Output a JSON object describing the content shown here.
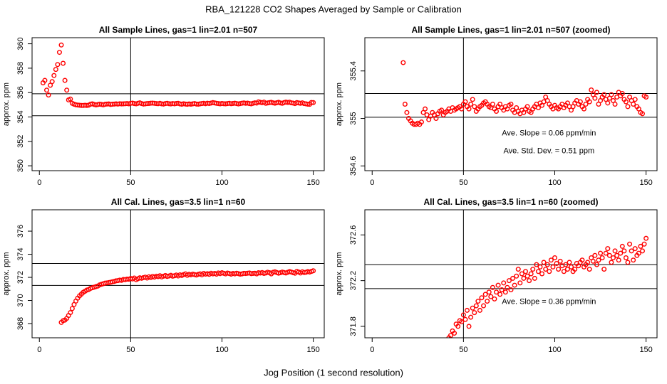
{
  "title": "RBA_121228  CO2 Shapes Averaged by Sample or Calibration",
  "xlabel": "Jog Position (1 second resolution)",
  "chart_data": [
    {
      "type": "scatter",
      "title": "All Sample Lines, gas=1 lin=2.01 n=507",
      "ylabel": "approx. ppm",
      "color": "#ff0000",
      "xlim": [
        -4,
        156
      ],
      "ylim": [
        349.6,
        360.5
      ],
      "xticks": [
        0,
        50,
        100,
        150
      ],
      "yticks": [
        350,
        352,
        354,
        356,
        358,
        360
      ],
      "hlines": [
        355.9,
        354.1
      ],
      "vline": 50,
      "annotations": [],
      "x": [
        2,
        3,
        4,
        5,
        6,
        7,
        8,
        9,
        10,
        11,
        12,
        13,
        14,
        15,
        16,
        17,
        18,
        19,
        20,
        21,
        22,
        23,
        24,
        25,
        26,
        27,
        28,
        29,
        30,
        31,
        32,
        33,
        34,
        35,
        36,
        37,
        38,
        39,
        40,
        41,
        42,
        43,
        44,
        45,
        46,
        47,
        48,
        49,
        50,
        51,
        52,
        53,
        54,
        55,
        56,
        57,
        58,
        59,
        60,
        61,
        62,
        63,
        64,
        65,
        66,
        67,
        68,
        69,
        70,
        71,
        72,
        73,
        74,
        75,
        76,
        77,
        78,
        79,
        80,
        81,
        82,
        83,
        84,
        85,
        86,
        87,
        88,
        89,
        90,
        91,
        92,
        93,
        94,
        95,
        96,
        97,
        98,
        99,
        100,
        101,
        102,
        103,
        104,
        105,
        106,
        107,
        108,
        109,
        110,
        111,
        112,
        113,
        114,
        115,
        116,
        117,
        118,
        119,
        120,
        121,
        122,
        123,
        124,
        125,
        126,
        127,
        128,
        129,
        130,
        131,
        132,
        133,
        134,
        135,
        136,
        137,
        138,
        139,
        140,
        141,
        142,
        143,
        144,
        145,
        146,
        147,
        148,
        149,
        150
      ],
      "values": [
        356.8,
        357.0,
        356.2,
        355.8,
        356.6,
        356.9,
        357.4,
        357.9,
        358.3,
        359.3,
        359.9,
        358.4,
        357.0,
        356.2,
        355.4,
        355.47,
        355.12,
        355.05,
        355.0,
        354.98,
        354.96,
        354.95,
        354.95,
        354.96,
        354.95,
        354.97,
        355.05,
        355.08,
        355.03,
        354.99,
        355.02,
        355.05,
        355.03,
        355.0,
        355.04,
        355.06,
        355.07,
        355.03,
        355.05,
        355.06,
        355.08,
        355.06,
        355.09,
        355.07,
        355.08,
        355.09,
        355.1,
        355.08,
        355.12,
        355.14,
        355.1,
        355.08,
        355.12,
        355.16,
        355.1,
        355.06,
        355.08,
        355.1,
        355.11,
        355.13,
        355.14,
        355.12,
        355.1,
        355.09,
        355.12,
        355.08,
        355.06,
        355.1,
        355.12,
        355.09,
        355.07,
        355.1,
        355.08,
        355.11,
        355.12,
        355.07,
        355.05,
        355.09,
        355.06,
        355.04,
        355.07,
        355.05,
        355.08,
        355.1,
        355.06,
        355.05,
        355.08,
        355.1,
        355.12,
        355.09,
        355.13,
        355.11,
        355.14,
        355.18,
        355.15,
        355.12,
        355.1,
        355.08,
        355.11,
        355.09,
        355.08,
        355.1,
        355.12,
        355.09,
        355.11,
        355.13,
        355.1,
        355.07,
        355.1,
        355.13,
        355.15,
        355.12,
        355.14,
        355.1,
        355.08,
        355.12,
        355.16,
        355.14,
        355.24,
        355.2,
        355.17,
        355.22,
        355.12,
        355.15,
        355.18,
        355.2,
        355.16,
        355.13,
        355.17,
        355.2,
        355.15,
        355.12,
        355.18,
        355.22,
        355.19,
        355.21,
        355.16,
        355.14,
        355.1,
        355.18,
        355.15,
        355.12,
        355.16,
        355.1,
        355.08,
        355.05,
        355.04,
        355.19,
        355.18
      ]
    },
    {
      "type": "scatter",
      "title": "All Sample Lines, gas=1 lin=2.01 n=507 (zoomed)",
      "ylabel": "approx. ppm",
      "color": "#ff0000",
      "xlim": [
        -4,
        156
      ],
      "ylim": [
        354.56,
        355.68
      ],
      "xticks": [
        0,
        50,
        100,
        150
      ],
      "yticks": [
        354.6,
        355.0,
        355.4
      ],
      "hlines": [
        355.21,
        355.01
      ],
      "vline": 50,
      "annotations": [
        "Ave. Slope =  0.06  ppm/min",
        "Ave. Std. Dev. =  0.51  ppm"
      ],
      "x": [
        17,
        18,
        19,
        20,
        21,
        22,
        23,
        24,
        25,
        26,
        27,
        28,
        29,
        30,
        31,
        32,
        33,
        34,
        35,
        36,
        37,
        38,
        39,
        40,
        41,
        42,
        43,
        44,
        45,
        46,
        47,
        48,
        49,
        50,
        51,
        52,
        53,
        54,
        55,
        56,
        57,
        58,
        59,
        60,
        61,
        62,
        63,
        64,
        65,
        66,
        67,
        68,
        69,
        70,
        71,
        72,
        73,
        74,
        75,
        76,
        77,
        78,
        79,
        80,
        81,
        82,
        83,
        84,
        85,
        86,
        87,
        88,
        89,
        90,
        91,
        92,
        93,
        94,
        95,
        96,
        97,
        98,
        99,
        100,
        101,
        102,
        103,
        104,
        105,
        106,
        107,
        108,
        109,
        110,
        111,
        112,
        113,
        114,
        115,
        116,
        117,
        118,
        119,
        120,
        121,
        122,
        123,
        124,
        125,
        126,
        127,
        128,
        129,
        130,
        131,
        132,
        133,
        134,
        135,
        136,
        137,
        138,
        139,
        140,
        141,
        142,
        143,
        144,
        145,
        146,
        147,
        148,
        149,
        150
      ],
      "values": [
        355.47,
        355.12,
        355.05,
        355.0,
        354.98,
        354.96,
        354.95,
        354.95,
        354.96,
        354.95,
        354.97,
        355.05,
        355.08,
        355.03,
        354.99,
        355.02,
        355.05,
        355.03,
        355.0,
        355.04,
        355.06,
        355.07,
        355.03,
        355.05,
        355.06,
        355.08,
        355.06,
        355.09,
        355.07,
        355.08,
        355.09,
        355.1,
        355.08,
        355.12,
        355.14,
        355.1,
        355.08,
        355.12,
        355.16,
        355.1,
        355.06,
        355.08,
        355.1,
        355.11,
        355.13,
        355.14,
        355.12,
        355.1,
        355.09,
        355.12,
        355.08,
        355.06,
        355.1,
        355.12,
        355.09,
        355.07,
        355.1,
        355.08,
        355.11,
        355.12,
        355.07,
        355.05,
        355.09,
        355.06,
        355.04,
        355.07,
        355.05,
        355.08,
        355.1,
        355.06,
        355.05,
        355.08,
        355.1,
        355.12,
        355.09,
        355.13,
        355.11,
        355.14,
        355.18,
        355.15,
        355.12,
        355.1,
        355.08,
        355.11,
        355.09,
        355.08,
        355.1,
        355.12,
        355.09,
        355.11,
        355.13,
        355.1,
        355.07,
        355.1,
        355.13,
        355.15,
        355.12,
        355.14,
        355.1,
        355.08,
        355.12,
        355.16,
        355.14,
        355.24,
        355.2,
        355.17,
        355.22,
        355.12,
        355.15,
        355.18,
        355.2,
        355.16,
        355.13,
        355.17,
        355.2,
        355.15,
        355.12,
        355.18,
        355.22,
        355.19,
        355.21,
        355.16,
        355.14,
        355.1,
        355.18,
        355.15,
        355.12,
        355.16,
        355.1,
        355.08,
        355.05,
        355.04,
        355.19,
        355.18
      ]
    },
    {
      "type": "scatter",
      "title": "All Cal. Lines, gas=3.5 lin=1 n=60",
      "ylabel": "approx. ppm",
      "color": "#ff0000",
      "xlim": [
        -4,
        156
      ],
      "ylim": [
        366.77,
        377.85
      ],
      "xticks": [
        0,
        50,
        100,
        150
      ],
      "yticks": [
        368,
        370,
        372,
        374,
        376
      ],
      "hlines": [
        373.2,
        371.3
      ],
      "vline": 50,
      "annotations": [],
      "x": [
        12,
        13,
        14,
        15,
        16,
        17,
        18,
        19,
        20,
        21,
        22,
        23,
        24,
        25,
        26,
        27,
        28,
        29,
        30,
        31,
        32,
        33,
        34,
        35,
        36,
        37,
        38,
        39,
        40,
        41,
        42,
        43,
        44,
        45,
        46,
        47,
        48,
        49,
        50,
        51,
        52,
        53,
        54,
        55,
        56,
        57,
        58,
        59,
        60,
        61,
        62,
        63,
        64,
        65,
        66,
        67,
        68,
        69,
        70,
        71,
        72,
        73,
        74,
        75,
        76,
        77,
        78,
        79,
        80,
        81,
        82,
        83,
        84,
        85,
        86,
        87,
        88,
        89,
        90,
        91,
        92,
        93,
        94,
        95,
        96,
        97,
        98,
        99,
        100,
        101,
        102,
        103,
        104,
        105,
        106,
        107,
        108,
        109,
        110,
        111,
        112,
        113,
        114,
        115,
        116,
        117,
        118,
        119,
        120,
        121,
        122,
        123,
        124,
        125,
        126,
        127,
        128,
        129,
        130,
        131,
        132,
        133,
        134,
        135,
        136,
        137,
        138,
        139,
        140,
        141,
        142,
        143,
        144,
        145,
        146,
        147,
        148,
        149,
        150
      ],
      "values": [
        368.1,
        368.25,
        368.3,
        368.45,
        368.7,
        368.95,
        369.3,
        369.65,
        369.95,
        370.2,
        370.4,
        370.55,
        370.7,
        370.8,
        370.9,
        370.95,
        371.05,
        371.1,
        371.15,
        371.2,
        371.25,
        371.35,
        371.4,
        371.45,
        371.5,
        371.52,
        371.55,
        371.58,
        371.62,
        371.65,
        371.7,
        371.72,
        371.76,
        371.74,
        371.82,
        371.8,
        371.85,
        371.84,
        371.9,
        371.86,
        371.94,
        371.8,
        371.88,
        371.96,
        371.92,
        371.98,
        372.02,
        371.94,
        372.05,
        371.98,
        372.08,
        372.02,
        372.1,
        372.06,
        372.14,
        372.04,
        372.1,
        372.16,
        372.08,
        372.12,
        372.18,
        372.1,
        372.14,
        372.2,
        372.12,
        372.22,
        372.16,
        372.24,
        372.3,
        372.18,
        372.26,
        372.22,
        372.28,
        372.24,
        372.2,
        372.26,
        372.3,
        372.22,
        372.34,
        372.28,
        372.32,
        372.26,
        372.36,
        372.3,
        372.34,
        372.28,
        372.38,
        372.32,
        372.4,
        372.35,
        372.3,
        372.37,
        372.33,
        372.28,
        372.34,
        372.3,
        372.36,
        372.32,
        372.28,
        372.3,
        372.35,
        372.33,
        372.36,
        372.38,
        372.32,
        372.34,
        372.36,
        372.3,
        372.4,
        372.37,
        372.42,
        372.34,
        372.38,
        372.44,
        372.4,
        372.3,
        372.44,
        372.48,
        372.42,
        372.36,
        372.4,
        372.46,
        372.42,
        372.38,
        372.44,
        372.5,
        372.46,
        372.4,
        372.36,
        372.52,
        372.46,
        372.38,
        372.48,
        372.42,
        372.44,
        372.5,
        372.46,
        372.52,
        372.57
      ]
    },
    {
      "type": "scatter",
      "title": "All Cal. Lines, gas=3.5 lin=1 n=60 (zoomed)",
      "ylabel": "approx. ppm",
      "color": "#ff0000",
      "xlim": [
        -4,
        156
      ],
      "ylim": [
        371.7,
        372.82
      ],
      "xticks": [
        0,
        50,
        100,
        150
      ],
      "yticks": [
        371.8,
        372.2,
        372.6
      ],
      "hlines": [
        372.34,
        372.13
      ],
      "vline": 50,
      "annotations": [
        "Ave. Slope =  0.36  ppm/min"
      ],
      "x": [
        42,
        43,
        44,
        45,
        46,
        47,
        48,
        49,
        50,
        51,
        52,
        53,
        54,
        55,
        56,
        57,
        58,
        59,
        60,
        61,
        62,
        63,
        64,
        65,
        66,
        67,
        68,
        69,
        70,
        71,
        72,
        73,
        74,
        75,
        76,
        77,
        78,
        79,
        80,
        81,
        82,
        83,
        84,
        85,
        86,
        87,
        88,
        89,
        90,
        91,
        92,
        93,
        94,
        95,
        96,
        97,
        98,
        99,
        100,
        101,
        102,
        103,
        104,
        105,
        106,
        107,
        108,
        109,
        110,
        111,
        112,
        113,
        114,
        115,
        116,
        117,
        118,
        119,
        120,
        121,
        122,
        123,
        124,
        125,
        126,
        127,
        128,
        129,
        130,
        131,
        132,
        133,
        134,
        135,
        136,
        137,
        138,
        139,
        140,
        141,
        142,
        143,
        144,
        145,
        146,
        147,
        148,
        149,
        150
      ],
      "values": [
        371.7,
        371.72,
        371.76,
        371.74,
        371.82,
        371.8,
        371.85,
        371.84,
        371.9,
        371.86,
        371.94,
        371.8,
        371.88,
        371.96,
        371.92,
        371.98,
        372.02,
        371.94,
        372.05,
        371.98,
        372.08,
        372.02,
        372.1,
        372.06,
        372.14,
        372.04,
        372.1,
        372.16,
        372.08,
        372.12,
        372.18,
        372.1,
        372.14,
        372.2,
        372.12,
        372.22,
        372.16,
        372.24,
        372.3,
        372.18,
        372.26,
        372.22,
        372.28,
        372.24,
        372.2,
        372.26,
        372.3,
        372.22,
        372.34,
        372.28,
        372.32,
        372.26,
        372.36,
        372.3,
        372.34,
        372.28,
        372.38,
        372.32,
        372.4,
        372.35,
        372.3,
        372.37,
        372.33,
        372.28,
        372.34,
        372.3,
        372.36,
        372.32,
        372.28,
        372.3,
        372.35,
        372.33,
        372.36,
        372.38,
        372.32,
        372.34,
        372.36,
        372.3,
        372.4,
        372.37,
        372.42,
        372.34,
        372.38,
        372.44,
        372.4,
        372.3,
        372.44,
        372.48,
        372.42,
        372.36,
        372.4,
        372.46,
        372.42,
        372.38,
        372.44,
        372.5,
        372.46,
        372.4,
        372.36,
        372.52,
        372.46,
        372.38,
        372.48,
        372.42,
        372.44,
        372.5,
        372.46,
        372.52,
        372.57
      ]
    }
  ]
}
